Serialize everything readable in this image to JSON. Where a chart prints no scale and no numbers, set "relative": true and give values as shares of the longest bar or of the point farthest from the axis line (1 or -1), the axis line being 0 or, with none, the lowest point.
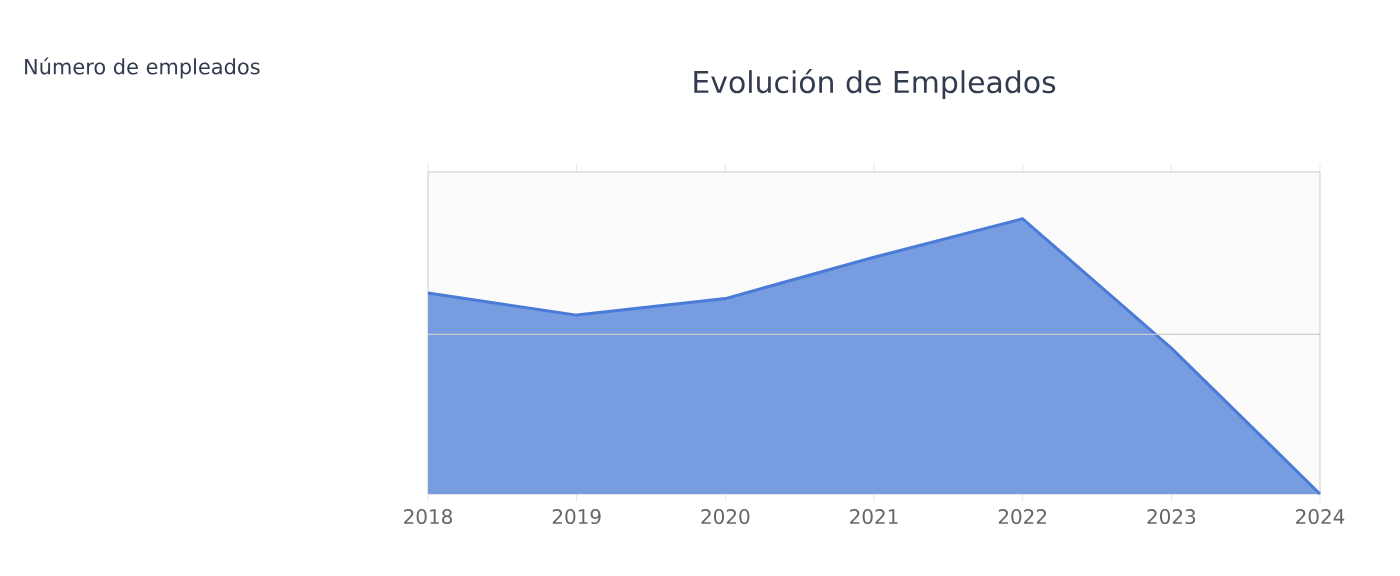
{
  "chart_data": {
    "type": "area",
    "title": "Evolución de Empleados",
    "annotations": [
      "Número de empleados"
    ],
    "categories": [
      "2018",
      "2019",
      "2020",
      "2021",
      "2022",
      "2023",
      "2024"
    ],
    "relative": true,
    "ref_lines": [
      {
        "axis": "y",
        "value": 0.58,
        "color": "#cccccc"
      }
    ],
    "series": [
      {
        "color": "#4a7bd6",
        "values": [
          0.73,
          0.65,
          0.71,
          0.86,
          1,
          0.53,
          0
        ]
      }
    ]
  }
}
